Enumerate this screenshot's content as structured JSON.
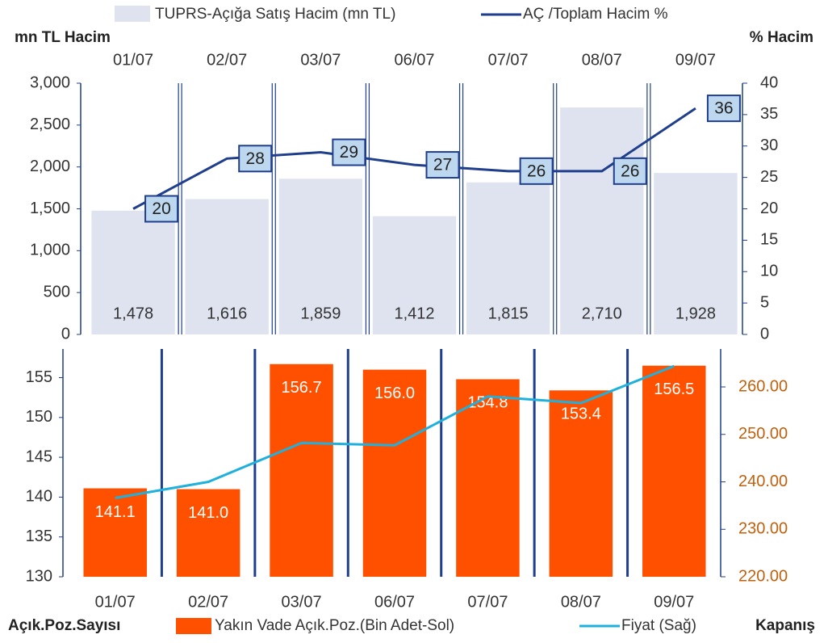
{
  "chart_data": [
    {
      "type": "bar_line",
      "legend": [
        "TUPRS-Açığa Satış Hacim (mn TL)",
        "AÇ /Toplam Hacim %"
      ],
      "y_label": "mn TL Hacim",
      "y2_label": "% Hacim",
      "categories": [
        "01/07",
        "02/07",
        "03/07",
        "06/07",
        "07/07",
        "08/07",
        "09/07"
      ],
      "series": [
        {
          "name": "TUPRS-Açığa Satış Hacim (mn TL)",
          "color": "#dee3ef",
          "values": [
            1478,
            1616,
            1859,
            1412,
            1815,
            2710,
            1928
          ],
          "value_labels": [
            "1,478",
            "1,616",
            "1,859",
            "1,412",
            "1,815",
            "2,710",
            "1,928"
          ]
        },
        {
          "name": "AÇ /Toplam Hacim %",
          "color": "#1f3e8c",
          "axis": "y2",
          "values": [
            20,
            28,
            29,
            27,
            26,
            26,
            36
          ]
        }
      ],
      "ylim": [
        0,
        3000
      ],
      "yticks": [
        0,
        500,
        {
          "value": 1000,
          "label": "1,000"
        },
        {
          "value": 1500,
          "label": "1,500"
        },
        {
          "value": 2000,
          "label": "2,000"
        },
        {
          "value": 2500,
          "label": "2,500"
        },
        {
          "value": 3000,
          "label": "3,000"
        }
      ],
      "y2lim": [
        0,
        40
      ],
      "y2ticks": [
        0,
        5,
        10,
        15,
        20,
        25,
        30,
        35,
        40
      ]
    },
    {
      "type": "bar_line",
      "legend": [
        "Yakın Vade Açık.Poz.(Bin Adet-Sol)",
        "Fiyat (Sağ)"
      ],
      "y_label": "Açık.Poz.Sayısı",
      "y2_label": "Kapanış",
      "categories": [
        "01/07",
        "02/07",
        "03/07",
        "06/07",
        "07/07",
        "08/07",
        "09/07"
      ],
      "series": [
        {
          "name": "Yakın Vade Açık.Poz.(Bin Adet-Sol)",
          "color": "#ff5000",
          "values": [
            141.1,
            141.0,
            156.7,
            156.0,
            154.8,
            153.4,
            156.5
          ],
          "value_labels": [
            "141.1",
            "141.0",
            "156.7",
            "156.0",
            "154.8",
            "153.4",
            "156.5"
          ]
        },
        {
          "name": "Fiyat (Sağ)",
          "color": "#1fb0dc",
          "axis": "y2",
          "values": [
            236.6,
            240.0,
            248.2,
            247.7,
            258.0,
            256.6,
            264.4
          ]
        }
      ],
      "ylim": [
        130,
        158.6
      ],
      "yticks": [
        130,
        135,
        140,
        145,
        150,
        155
      ],
      "y2lim": [
        220,
        268
      ],
      "y2ticks": [
        {
          "value": 220,
          "label": "220.00"
        },
        {
          "value": 230,
          "label": "230.00"
        },
        {
          "value": 240,
          "label": "240.00"
        },
        {
          "value": 250,
          "label": "250.00"
        },
        {
          "value": 260,
          "label": "260.00"
        }
      ]
    }
  ]
}
